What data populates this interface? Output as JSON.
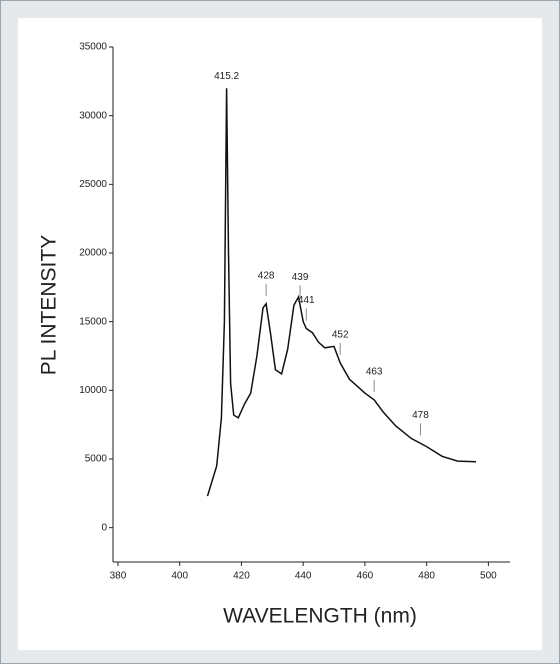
{
  "chart_data": {
    "type": "line",
    "xlabel": "WAVELENGTH (nm)",
    "ylabel": "PL INTENSITY",
    "x": [
      409,
      412,
      413.5,
      414.5,
      415.2,
      415.8,
      416.5,
      417.5,
      419,
      421,
      423,
      425,
      427,
      428,
      429.5,
      431,
      433,
      435,
      437,
      438.5,
      440,
      441,
      443,
      445,
      447,
      450,
      452,
      455,
      460,
      463,
      466,
      470,
      475,
      480,
      485,
      490,
      496
    ],
    "series": [
      {
        "color": "#111111",
        "values": [
          2300,
          4500,
          8000,
          15000,
          32000,
          20000,
          10500,
          8200,
          8000,
          9000,
          9800,
          12500,
          16000,
          16300,
          14000,
          11500,
          11200,
          13000,
          16200,
          16800,
          15000,
          14500,
          14200,
          13500,
          13100,
          13200,
          12000,
          10800,
          9800,
          9300,
          8400,
          7400,
          6500,
          5900,
          5200,
          4850,
          4800
        ]
      }
    ],
    "peaks": [
      415.2,
      428,
      439,
      441,
      452,
      463,
      478
    ],
    "xlim": [
      378.4,
      507
    ],
    "xticks": [
      380,
      400,
      420,
      440,
      460,
      480,
      500
    ],
    "ylim": [
      -2500,
      35000
    ],
    "yticks": [
      0,
      5000,
      10000,
      15000,
      20000,
      25000,
      30000,
      35000
    ]
  }
}
